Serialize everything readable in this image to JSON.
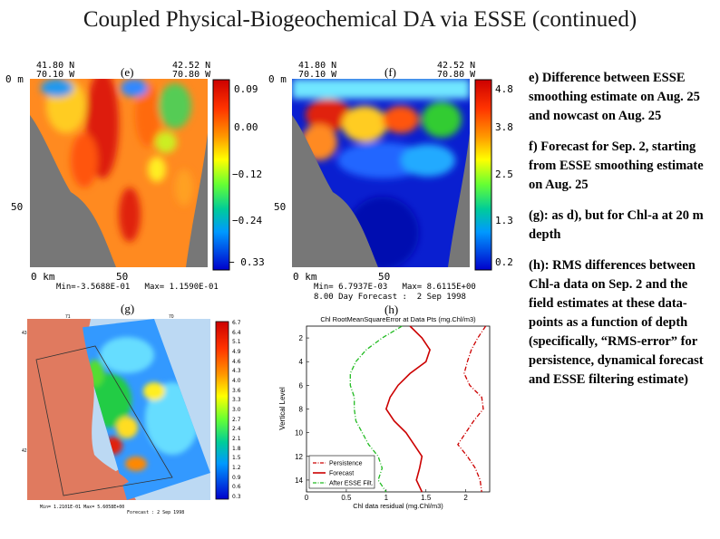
{
  "title": "Coupled Physical-Biogeochemical DA via ESSE (continued)",
  "panel_e": {
    "label": "(e)",
    "coord_left": "41.80 N\n70.10 W",
    "coord_right": "42.52 N\n70.80 W",
    "depth_top": "0 m",
    "depth_mid": "50",
    "dist_left": "0  km",
    "dist_mid": "50",
    "minmax": "Min=-3.5688E-01   Max= 1.1590E-01",
    "colorbar_labels": [
      "0.09",
      "0.00",
      "−0.12",
      "−0.24",
      "− 0.33"
    ]
  },
  "panel_f": {
    "label": "(f)",
    "coord_left": "41.80 N\n70.10 W",
    "coord_right": "42.52 N\n70.80 W",
    "depth_top": "0 m",
    "depth_mid": "50",
    "dist_left": "0  km",
    "dist_mid": "50",
    "minmax": "Min= 6.7937E-03   Max= 8.6115E+00",
    "forecast": "8.00 Day Forecast :  2 Sep 1998",
    "colorbar_labels": [
      "4.8",
      "3.8",
      "2.5",
      "1.3",
      "0.2"
    ]
  },
  "panel_g": {
    "label": "(g)",
    "ticks_top": [
      "71",
      "70"
    ],
    "ticks_left": [
      "43",
      "42"
    ],
    "minmax": "Min= 1.2101E-01   Max= 5.6058E+00",
    "forecast": "Forecast  :  2 Sep 1998",
    "colorbar_labels": [
      "6.7",
      "6.4",
      "5.1",
      "4.9",
      "4.6",
      "4.3",
      "4.0",
      "3.6",
      "3.3",
      "3.0",
      "2.7",
      "2.4",
      "2.1",
      "1.8",
      "1.5",
      "1.2",
      "0.9",
      "0.6",
      "0.3"
    ]
  },
  "panel_h": {
    "label": "(h)"
  },
  "chart_data": {
    "type": "line",
    "title": "Chl RootMeanSquareError at Data Pts (mg.Chl/m3)",
    "xlabel": "Chl data residual (mg.Chl/m3)",
    "ylabel": "Vertical Level",
    "xlim": [
      0,
      2.3
    ],
    "ylim": [
      15,
      1
    ],
    "xticks": [
      0,
      0.5,
      1,
      1.5,
      2
    ],
    "yticks": [
      2,
      4,
      6,
      8,
      10,
      12,
      14
    ],
    "y": [
      1,
      2,
      3,
      4,
      5,
      6,
      7,
      8,
      9,
      10,
      11,
      12,
      13,
      14,
      15
    ],
    "series": [
      {
        "name": "Persistence",
        "color": "#cc0000",
        "dash": "dashdot",
        "values": [
          2.25,
          2.15,
          2.07,
          2.02,
          1.98,
          2.05,
          2.2,
          2.22,
          2.1,
          2.0,
          1.9,
          2.02,
          2.12,
          2.18,
          2.2
        ]
      },
      {
        "name": "Forecast",
        "color": "#cc0000",
        "dash": "solid",
        "values": [
          1.3,
          1.45,
          1.55,
          1.5,
          1.3,
          1.15,
          1.05,
          1.0,
          1.1,
          1.25,
          1.35,
          1.45,
          1.42,
          1.38,
          1.45
        ]
      },
      {
        "name": "After ESSE Filt.",
        "color": "#22bb22",
        "dash": "dashdot",
        "values": [
          1.2,
          0.95,
          0.75,
          0.62,
          0.55,
          0.55,
          0.6,
          0.6,
          0.62,
          0.7,
          0.78,
          0.9,
          0.95,
          0.9,
          1.0
        ]
      }
    ],
    "legend_position": "bottom-left",
    "grid": false
  },
  "notes": [
    "e) Difference between ESSE smoothing estimate on Aug. 25 and nowcast on Aug. 25",
    "f) Forecast for Sep. 2, starting from ESSE smoothing estimate on Aug. 25",
    "(g): as d), but for Chl-a at 20 m depth",
    "(h): RMS differences between Chl-a data on Sep. 2 and the field estimates at these data-points as a function of depth (specifically, “RMS-error” for persistence, dynamical forecast and ESSE filtering estimate)"
  ]
}
